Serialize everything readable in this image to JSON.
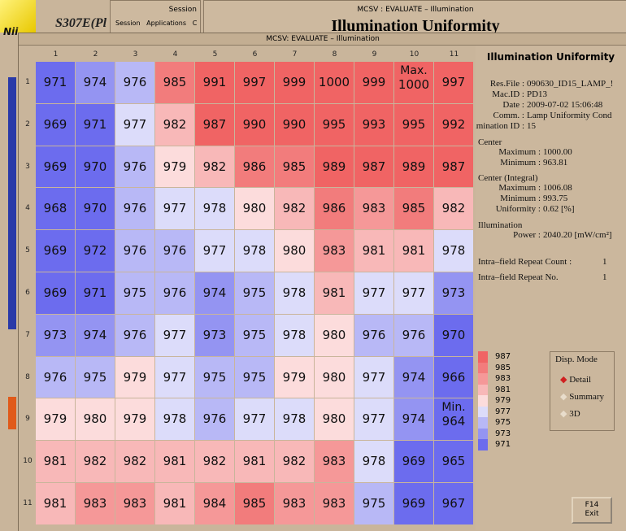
{
  "background": {
    "logo": "Nii",
    "app_title": "S307E(Pl",
    "session_window": {
      "title": "Session",
      "menu": [
        "Session",
        "Applications",
        "C"
      ]
    },
    "back_window": {
      "title": "MCSV : EVALUATE – Illumination",
      "heading": "Illumination Uniformity"
    }
  },
  "window": {
    "title": "MCSV: EVALUATE – Illumination"
  },
  "grid": {
    "columns": [
      1,
      2,
      3,
      4,
      5,
      6,
      7,
      8,
      9,
      10,
      11
    ],
    "row_labels": [
      1,
      2,
      3,
      4,
      5,
      6,
      7,
      8,
      9,
      10,
      11
    ],
    "rows": [
      [
        971,
        974,
        976,
        985,
        991,
        997,
        999,
        1000,
        999,
        {
          "value": 1000,
          "label": "Max."
        },
        997
      ],
      [
        969,
        971,
        977,
        982,
        987,
        990,
        990,
        995,
        993,
        995,
        992
      ],
      [
        969,
        970,
        976,
        979,
        982,
        986,
        985,
        989,
        987,
        989,
        987
      ],
      [
        968,
        970,
        976,
        977,
        978,
        980,
        982,
        986,
        983,
        985,
        982
      ],
      [
        969,
        972,
        976,
        976,
        977,
        978,
        980,
        983,
        981,
        981,
        978
      ],
      [
        969,
        971,
        975,
        976,
        974,
        975,
        978,
        981,
        977,
        977,
        973
      ],
      [
        973,
        974,
        976,
        977,
        973,
        975,
        978,
        980,
        976,
        976,
        970
      ],
      [
        976,
        975,
        979,
        977,
        975,
        975,
        979,
        980,
        977,
        974,
        966
      ],
      [
        979,
        980,
        979,
        978,
        976,
        977,
        978,
        980,
        977,
        974,
        {
          "value": 964,
          "label": "Min."
        }
      ],
      [
        981,
        982,
        982,
        981,
        982,
        981,
        982,
        983,
        978,
        969,
        965
      ],
      [
        981,
        983,
        983,
        981,
        984,
        985,
        983,
        983,
        975,
        969,
        967
      ]
    ]
  },
  "legend": {
    "labels": [
      987,
      985,
      983,
      981,
      979,
      977,
      975,
      973,
      971
    ],
    "colors": [
      "#f06464",
      "#f27c7c",
      "#f59898",
      "#f8b8b8",
      "#fcdcdc",
      "#dcdcfa",
      "#b8b8f6",
      "#9494f2",
      "#6c6cee"
    ]
  },
  "info": {
    "title": "Illumination Uniformity",
    "fields": [
      {
        "label": "Res.File :",
        "value": "090630_ID15_LAMP_!"
      },
      {
        "label": "Mac.ID :",
        "value": "PD13"
      },
      {
        "label": "Date :",
        "value": "2009-07-02 15:06:48"
      },
      {
        "label": "Comm. :",
        "value": "Lamp Uniformity Cond"
      },
      {
        "label": "Illumination ID :",
        "value": "15"
      }
    ],
    "center": {
      "heading": "Center",
      "rows": [
        {
          "label": "Maximum :",
          "value": "1000.00"
        },
        {
          "label": "Minimum :",
          "value": "963.81"
        }
      ]
    },
    "integral": {
      "heading": "Center (Integral)",
      "rows": [
        {
          "label": "Maximum :",
          "value": "1006.08"
        },
        {
          "label": "Minimum :",
          "value": "993.75"
        },
        {
          "label": "Uniformity :",
          "value": "0.62 [%]"
        }
      ]
    },
    "power": {
      "heading": "Illumination",
      "rows": [
        {
          "label": "Power :",
          "value": "2040.20 [mW/cm²]"
        }
      ]
    },
    "repeat": [
      {
        "label": "Intra–field Repeat Count :",
        "value": "1"
      },
      {
        "label": "Intra–field Repeat No.",
        "value": "1"
      }
    ]
  },
  "disp_mode": {
    "title": "Disp. Mode",
    "options": [
      "Detail",
      "Summary",
      "3D"
    ]
  },
  "exit_button": {
    "key": "F14",
    "label": "Exit"
  }
}
